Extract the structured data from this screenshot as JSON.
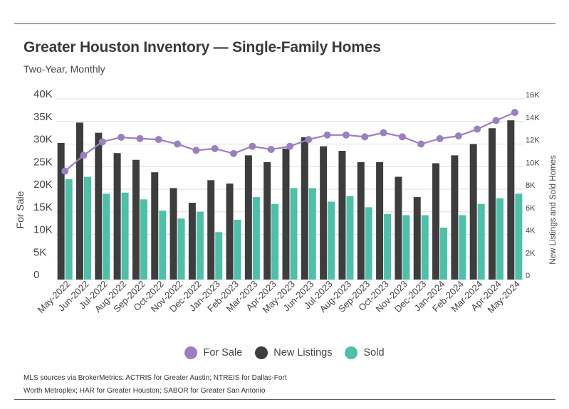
{
  "title": "Greater Houston Inventory — Single-Family Homes",
  "subtitle": "Two-Year, Monthly",
  "source_line1": "MLS sources via BrokerMetrics: ACTRIS for Greater Austin; NTREIS for Dallas-Fort",
  "source_line2": "Worth Metroplex; HAR for Greater Houston; SABOR for Greater San Antonio",
  "colors": {
    "for_sale": "#9b7fbf",
    "new_listings": "#3d3d3d",
    "sold": "#4fbfa8",
    "grid": "#dddddd"
  },
  "chart_data": {
    "type": "bar",
    "categories": [
      "May-2022",
      "Jun-2022",
      "Jul-2022",
      "Aug-2022",
      "Sep-2022",
      "Oct-2022",
      "Nov-2022",
      "Dec-2022",
      "Jan-2023",
      "Feb-2023",
      "Mar-2023",
      "Apr-2023",
      "May-2023",
      "Jun-2023",
      "Jul-2023",
      "Aug-2023",
      "Sep-2023",
      "Oct-2023",
      "Nov-2023",
      "Dec-2023",
      "Jan-2024",
      "Feb-2024",
      "Mar-2024",
      "Apr-2024",
      "May-2024"
    ],
    "ylabel": "For Sale",
    "y2label": "New Listings and Sold Homes",
    "ylim": [
      0,
      40000
    ],
    "y2lim": [
      0,
      16000
    ],
    "yticks": [
      "0",
      "5K",
      "10K",
      "15K",
      "20K",
      "25K",
      "30K",
      "35K",
      "40K"
    ],
    "y2ticks": [
      "0",
      "2K",
      "4K",
      "6K",
      "8K",
      "10K",
      "12K",
      "14K",
      "16K"
    ],
    "legend_position": "bottom",
    "series": [
      {
        "name": "For Sale",
        "type": "line",
        "axis": "left",
        "values": [
          24000,
          27500,
          30500,
          31500,
          31200,
          31000,
          30000,
          28600,
          29000,
          27900,
          29500,
          28800,
          29500,
          31000,
          32000,
          32000,
          31600,
          32500,
          31600,
          30000,
          31200,
          31800,
          33300,
          35200,
          37000
        ]
      },
      {
        "name": "New Listings",
        "type": "bar",
        "axis": "right",
        "values": [
          12100,
          13900,
          13000,
          11200,
          10600,
          9500,
          8100,
          6800,
          8800,
          8500,
          11000,
          10400,
          11600,
          12600,
          11800,
          11400,
          10400,
          10400,
          9100,
          7300,
          10300,
          11000,
          12000,
          13400,
          14100
        ]
      },
      {
        "name": "Sold",
        "type": "bar",
        "axis": "right",
        "values": [
          8900,
          9100,
          7600,
          7700,
          7100,
          6100,
          5400,
          6000,
          4200,
          5300,
          7300,
          6700,
          8100,
          8100,
          6900,
          7400,
          6400,
          5800,
          5700,
          5700,
          4600,
          5700,
          6700,
          7200,
          7600
        ]
      }
    ]
  }
}
